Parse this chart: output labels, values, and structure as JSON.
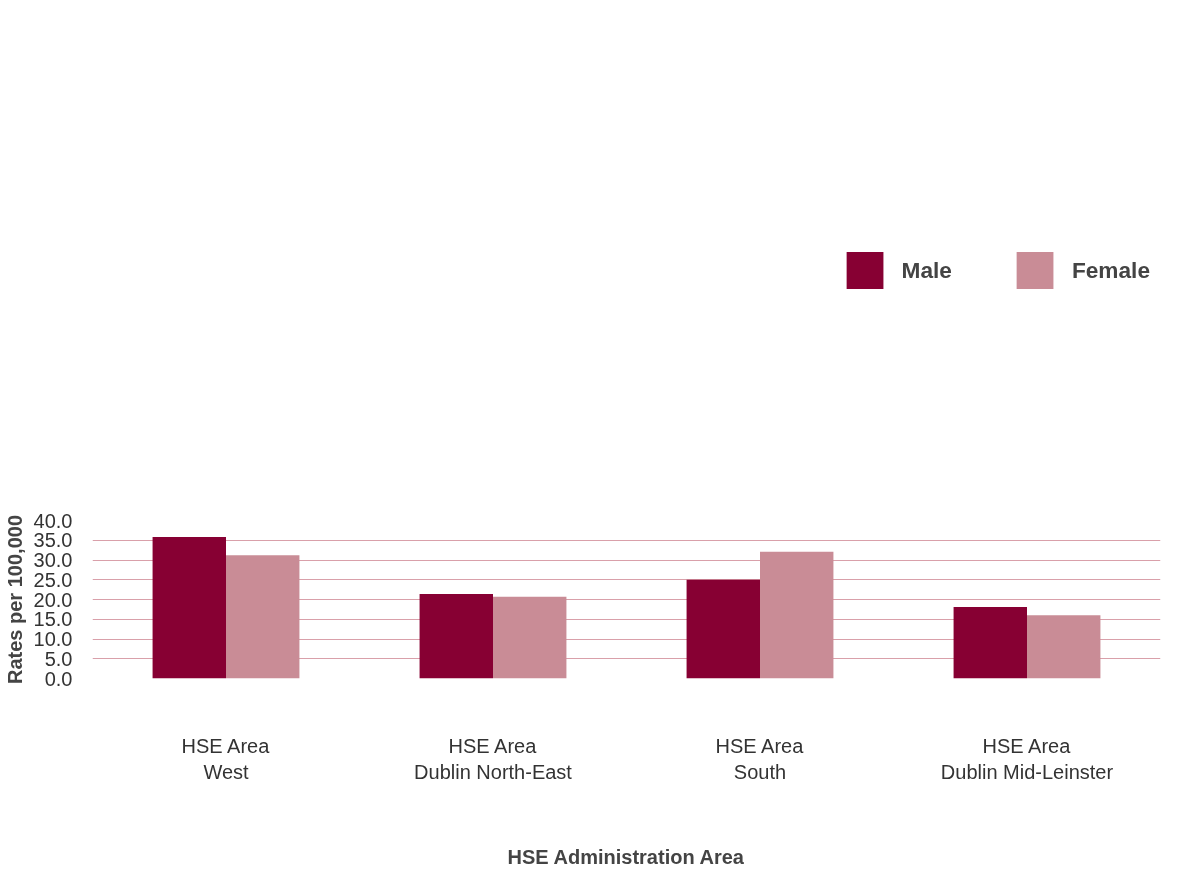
{
  "chart_data": {
    "type": "bar",
    "xlabel": "HSE Administration Area",
    "ylabel": "Rates per 100,000",
    "categories": [
      "HSE Area\nWest",
      "HSE Area\nDublin North-East",
      "HSE Area\nSouth",
      "HSE Area\nDublin Mid-Leinster"
    ],
    "series": [
      {
        "name": "Male",
        "color": "#870033",
        "values": [
          35.8,
          21.4,
          25.0,
          18.1
        ]
      },
      {
        "name": "Female",
        "color": "#c98c96",
        "values": [
          31.2,
          20.7,
          32.1,
          16.0
        ]
      }
    ],
    "ylim": [
      0,
      40
    ],
    "yticks": [
      {
        "value": 0,
        "label": "0.0"
      },
      {
        "value": 5,
        "label": "5.0"
      },
      {
        "value": 10,
        "label": "10.0"
      },
      {
        "value": 15,
        "label": "15.0"
      },
      {
        "value": 20,
        "label": "20.0"
      },
      {
        "value": 25,
        "label": "25.0"
      },
      {
        "value": 30,
        "label": "30.0"
      },
      {
        "value": 35,
        "label": "35.0"
      },
      {
        "value": 40,
        "label": "40.0"
      }
    ],
    "grid": "y",
    "legend": "top right"
  }
}
